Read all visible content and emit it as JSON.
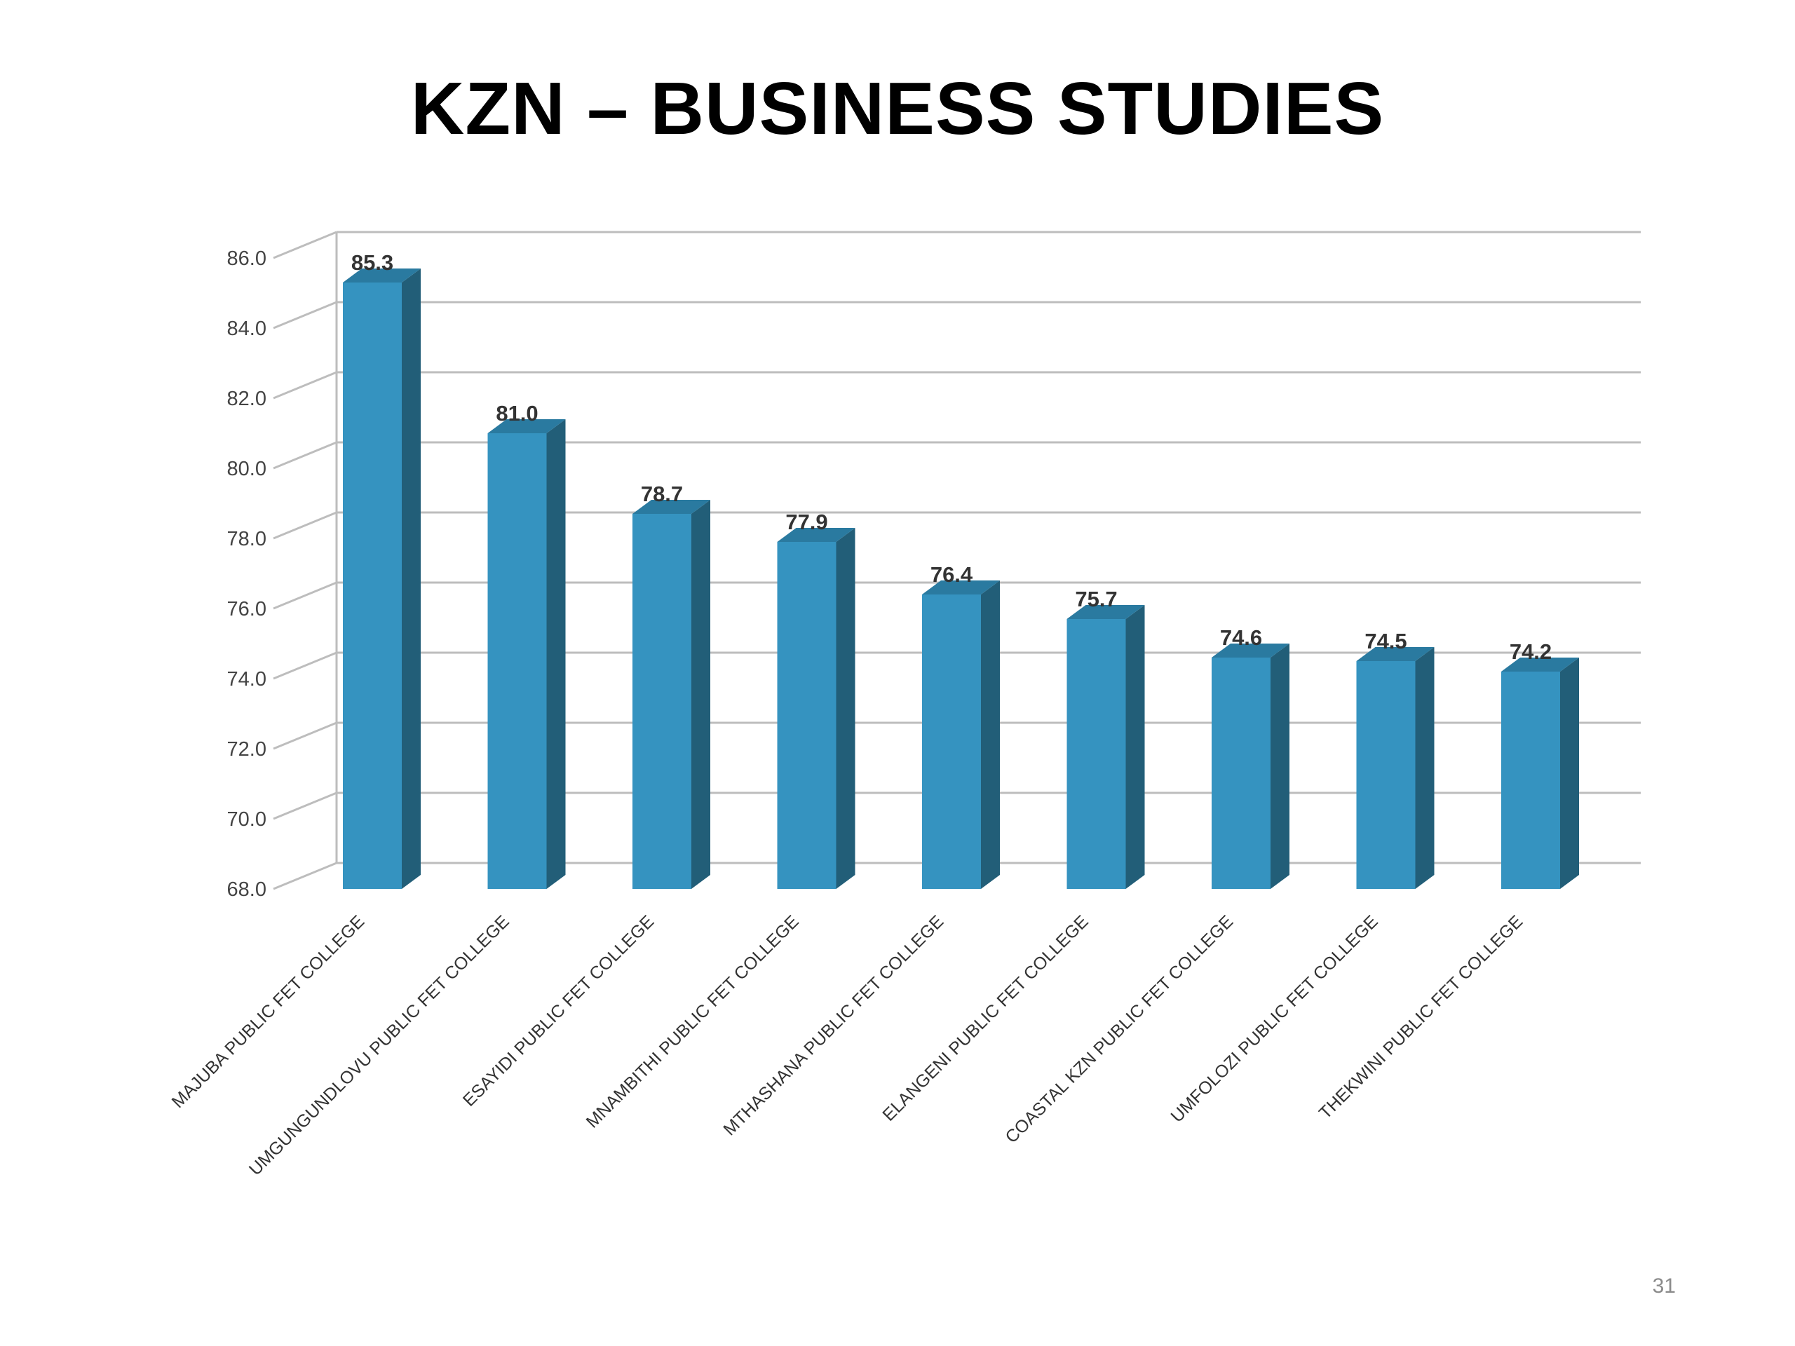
{
  "slide": {
    "title": "KZN – BUSINESS STUDIES",
    "page_number": "31"
  },
  "colors": {
    "bar_front": "#3593c0",
    "bar_side": "#225e78",
    "bar_top": "#2a7aa0",
    "grid": "#bdbdbd"
  },
  "chart_data": {
    "type": "bar",
    "title": "",
    "xlabel": "",
    "ylabel": "",
    "ylim": [
      68.0,
      86.0
    ],
    "yticks": [
      "68.0",
      "70.0",
      "72.0",
      "74.0",
      "76.0",
      "78.0",
      "80.0",
      "82.0",
      "84.0",
      "86.0"
    ],
    "grid": true,
    "style": "3d-column",
    "categories": [
      "MAJUBA PUBLIC FET COLLEGE",
      "UMGUNGUNDLOVU PUBLIC FET COLLEGE",
      "ESAYIDI PUBLIC FET COLLEGE",
      "MNAMBITHI PUBLIC FET COLLEGE",
      "MTHASHANA PUBLIC FET COLLEGE",
      "ELANGENI PUBLIC FET COLLEGE",
      "COASTAL KZN PUBLIC FET COLLEGE",
      "UMFOLOZI PUBLIC FET COLLEGE",
      "THEKWINI PUBLIC FET COLLEGE"
    ],
    "values": [
      85.3,
      81.0,
      78.7,
      77.9,
      76.4,
      75.7,
      74.6,
      74.5,
      74.2
    ],
    "data_labels": [
      "85.3",
      "81.0",
      "78.7",
      "77.9",
      "76.4",
      "75.7",
      "74.6",
      "74.5",
      "74.2"
    ]
  }
}
